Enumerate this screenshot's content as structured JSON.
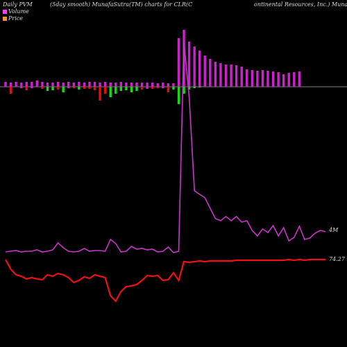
{
  "header": {
    "left": "Daily PVM",
    "center": "(5day smooth) MunafaSutra(TM) charts for CLR",
    "right1": "(C",
    "right2": "ontinental Resources, Inc.) MunafaSutra"
  },
  "legend": {
    "volume_label": "Volume",
    "price_label": "Price",
    "volume_color": "#ff3cff",
    "price_color": "#ff8f30"
  },
  "colors": {
    "up_bar": "#cc22cc",
    "down_red": "#e01010",
    "down_green": "#10dd10",
    "pvm_line": "#cc33cc",
    "price_line": "#ee1111",
    "baseline": "#aaaaaa"
  },
  "chart_data": {
    "type": "bar",
    "volume_bars": [
      {
        "v": 7,
        "d": 0,
        "c": "m"
      },
      {
        "v": 6,
        "d": 10,
        "c": "r"
      },
      {
        "v": 7,
        "d": 0,
        "c": "m"
      },
      {
        "v": 6,
        "d": 2,
        "c": "m"
      },
      {
        "v": 7,
        "d": 5,
        "c": "r"
      },
      {
        "v": 7,
        "d": 2,
        "c": "m"
      },
      {
        "v": 9,
        "d": 0,
        "c": "m"
      },
      {
        "v": 7,
        "d": 3,
        "c": "r"
      },
      {
        "v": 6,
        "d": 6,
        "c": "g"
      },
      {
        "v": 6,
        "d": 5,
        "c": "g"
      },
      {
        "v": 7,
        "d": 4,
        "c": "r"
      },
      {
        "v": 6,
        "d": 8,
        "c": "g"
      },
      {
        "v": 7,
        "d": 2,
        "c": "m"
      },
      {
        "v": 6,
        "d": 2,
        "c": "r"
      },
      {
        "v": 7,
        "d": 4,
        "c": "g"
      },
      {
        "v": 6,
        "d": 3,
        "c": "r"
      },
      {
        "v": 7,
        "d": 3,
        "c": "r"
      },
      {
        "v": 7,
        "d": 5,
        "c": "r"
      },
      {
        "v": 6,
        "d": 20,
        "c": "r"
      },
      {
        "v": 7,
        "d": 10,
        "c": "r"
      },
      {
        "v": 6,
        "d": 15,
        "c": "g"
      },
      {
        "v": 6,
        "d": 10,
        "c": "g"
      },
      {
        "v": 7,
        "d": 6,
        "c": "g"
      },
      {
        "v": 6,
        "d": 5,
        "c": "g"
      },
      {
        "v": 6,
        "d": 8,
        "c": "g"
      },
      {
        "v": 6,
        "d": 6,
        "c": "g"
      },
      {
        "v": 6,
        "d": 4,
        "c": "r"
      },
      {
        "v": 6,
        "d": 3,
        "c": "m"
      },
      {
        "v": 6,
        "d": 3,
        "c": "r"
      },
      {
        "v": 5,
        "d": 2,
        "c": "r"
      },
      {
        "v": 6,
        "d": 2,
        "c": "m"
      },
      {
        "v": 5,
        "d": 8,
        "c": "r"
      },
      {
        "v": 5,
        "d": 4,
        "c": "g"
      },
      {
        "v": 70,
        "d": 25,
        "c": "g"
      },
      {
        "v": 82,
        "d": 10,
        "c": "g"
      },
      {
        "v": 65,
        "d": 4,
        "c": "g"
      },
      {
        "v": 58,
        "d": 2,
        "c": "g"
      },
      {
        "v": 52,
        "d": 1,
        "c": "g"
      },
      {
        "v": 45,
        "d": 0,
        "c": "m"
      },
      {
        "v": 40,
        "d": 0,
        "c": "m"
      },
      {
        "v": 36,
        "d": 0,
        "c": "m"
      },
      {
        "v": 34,
        "d": 0,
        "c": "m"
      },
      {
        "v": 32,
        "d": 0,
        "c": "m"
      },
      {
        "v": 32,
        "d": 0,
        "c": "m"
      },
      {
        "v": 31,
        "d": 0,
        "c": "m"
      },
      {
        "v": 29,
        "d": 0,
        "c": "m"
      },
      {
        "v": 25,
        "d": 0,
        "c": "m"
      },
      {
        "v": 24,
        "d": 0,
        "c": "m"
      },
      {
        "v": 23,
        "d": 0,
        "c": "m"
      },
      {
        "v": 24,
        "d": 0,
        "c": "m"
      },
      {
        "v": 23,
        "d": 0,
        "c": "m"
      },
      {
        "v": 22,
        "d": 0,
        "c": "m"
      },
      {
        "v": 21,
        "d": 0,
        "c": "m"
      },
      {
        "v": 18,
        "d": 0,
        "c": "m"
      },
      {
        "v": 20,
        "d": 0,
        "c": "m"
      },
      {
        "v": 21,
        "d": 0,
        "c": "m"
      },
      {
        "v": 22,
        "d": 0,
        "c": "m"
      }
    ],
    "pvm_series": [
      {
        "x": 0,
        "y": 363
      },
      {
        "x": 1,
        "y": 362
      },
      {
        "x": 2,
        "y": 361
      },
      {
        "x": 3,
        "y": 363
      },
      {
        "x": 4,
        "y": 362
      },
      {
        "x": 5,
        "y": 362
      },
      {
        "x": 6,
        "y": 360
      },
      {
        "x": 7,
        "y": 363
      },
      {
        "x": 8,
        "y": 362
      },
      {
        "x": 9,
        "y": 360
      },
      {
        "x": 10,
        "y": 350
      },
      {
        "x": 11,
        "y": 357
      },
      {
        "x": 12,
        "y": 362
      },
      {
        "x": 13,
        "y": 363
      },
      {
        "x": 14,
        "y": 362
      },
      {
        "x": 15,
        "y": 358
      },
      {
        "x": 16,
        "y": 362
      },
      {
        "x": 17,
        "y": 361
      },
      {
        "x": 18,
        "y": 361
      },
      {
        "x": 19,
        "y": 362
      },
      {
        "x": 20,
        "y": 345
      },
      {
        "x": 21,
        "y": 351
      },
      {
        "x": 22,
        "y": 363
      },
      {
        "x": 23,
        "y": 362
      },
      {
        "x": 24,
        "y": 355
      },
      {
        "x": 25,
        "y": 359
      },
      {
        "x": 26,
        "y": 358
      },
      {
        "x": 27,
        "y": 360
      },
      {
        "x": 28,
        "y": 359
      },
      {
        "x": 29,
        "y": 363
      },
      {
        "x": 30,
        "y": 362
      },
      {
        "x": 31,
        "y": 356
      },
      {
        "x": 32,
        "y": 364
      },
      {
        "x": 33,
        "y": 362
      },
      {
        "x": 34,
        "y": 60
      },
      {
        "x": 35,
        "y": 140
      },
      {
        "x": 36,
        "y": 275
      },
      {
        "x": 37,
        "y": 280
      },
      {
        "x": 38,
        "y": 285
      },
      {
        "x": 39,
        "y": 300
      },
      {
        "x": 40,
        "y": 315
      },
      {
        "x": 41,
        "y": 318
      },
      {
        "x": 42,
        "y": 312
      },
      {
        "x": 43,
        "y": 318
      },
      {
        "x": 44,
        "y": 312
      },
      {
        "x": 45,
        "y": 320
      },
      {
        "x": 46,
        "y": 318
      },
      {
        "x": 47,
        "y": 332
      },
      {
        "x": 48,
        "y": 340
      },
      {
        "x": 49,
        "y": 330
      },
      {
        "x": 50,
        "y": 335
      },
      {
        "x": 51,
        "y": 325
      },
      {
        "x": 52,
        "y": 340
      },
      {
        "x": 53,
        "y": 328
      },
      {
        "x": 54,
        "y": 347
      },
      {
        "x": 55,
        "y": 342
      },
      {
        "x": 56,
        "y": 326
      },
      {
        "x": 57,
        "y": 345
      },
      {
        "x": 58,
        "y": 343
      },
      {
        "x": 59,
        "y": 336
      },
      {
        "x": 60,
        "y": 332
      },
      {
        "x": 61,
        "y": 334
      }
    ],
    "price_series": [
      {
        "x": 0,
        "y": 374
      },
      {
        "x": 1,
        "y": 388
      },
      {
        "x": 2,
        "y": 396
      },
      {
        "x": 3,
        "y": 398
      },
      {
        "x": 4,
        "y": 402
      },
      {
        "x": 5,
        "y": 400
      },
      {
        "x": 6,
        "y": 402
      },
      {
        "x": 7,
        "y": 403
      },
      {
        "x": 8,
        "y": 396
      },
      {
        "x": 9,
        "y": 398
      },
      {
        "x": 10,
        "y": 394
      },
      {
        "x": 11,
        "y": 396
      },
      {
        "x": 12,
        "y": 400
      },
      {
        "x": 13,
        "y": 407
      },
      {
        "x": 14,
        "y": 404
      },
      {
        "x": 15,
        "y": 399
      },
      {
        "x": 16,
        "y": 401
      },
      {
        "x": 17,
        "y": 396
      },
      {
        "x": 18,
        "y": 398
      },
      {
        "x": 19,
        "y": 400
      },
      {
        "x": 20,
        "y": 426
      },
      {
        "x": 21,
        "y": 434
      },
      {
        "x": 22,
        "y": 420
      },
      {
        "x": 23,
        "y": 413
      },
      {
        "x": 24,
        "y": 412
      },
      {
        "x": 25,
        "y": 410
      },
      {
        "x": 26,
        "y": 404
      },
      {
        "x": 27,
        "y": 397
      },
      {
        "x": 28,
        "y": 398
      },
      {
        "x": 29,
        "y": 397
      },
      {
        "x": 30,
        "y": 404
      },
      {
        "x": 31,
        "y": 403
      },
      {
        "x": 32,
        "y": 393
      },
      {
        "x": 33,
        "y": 404
      },
      {
        "x": 34,
        "y": 377
      },
      {
        "x": 35,
        "y": 378
      },
      {
        "x": 36,
        "y": 377
      },
      {
        "x": 37,
        "y": 376
      },
      {
        "x": 38,
        "y": 377
      },
      {
        "x": 39,
        "y": 376
      },
      {
        "x": 40,
        "y": 376
      },
      {
        "x": 41,
        "y": 376
      },
      {
        "x": 42,
        "y": 376
      },
      {
        "x": 43,
        "y": 376
      },
      {
        "x": 44,
        "y": 375
      },
      {
        "x": 45,
        "y": 375
      },
      {
        "x": 46,
        "y": 375
      },
      {
        "x": 47,
        "y": 375
      },
      {
        "x": 48,
        "y": 375
      },
      {
        "x": 49,
        "y": 375
      },
      {
        "x": 50,
        "y": 375
      },
      {
        "x": 51,
        "y": 375
      },
      {
        "x": 52,
        "y": 375
      },
      {
        "x": 53,
        "y": 375
      },
      {
        "x": 54,
        "y": 374
      },
      {
        "x": 55,
        "y": 375
      },
      {
        "x": 56,
        "y": 374
      },
      {
        "x": 57,
        "y": 375
      },
      {
        "x": 58,
        "y": 374
      },
      {
        "x": 59,
        "y": 374
      },
      {
        "x": 60,
        "y": 374
      },
      {
        "x": 61,
        "y": 374
      }
    ],
    "pvm_end_label": "4M",
    "price_end_label": "74.27"
  }
}
